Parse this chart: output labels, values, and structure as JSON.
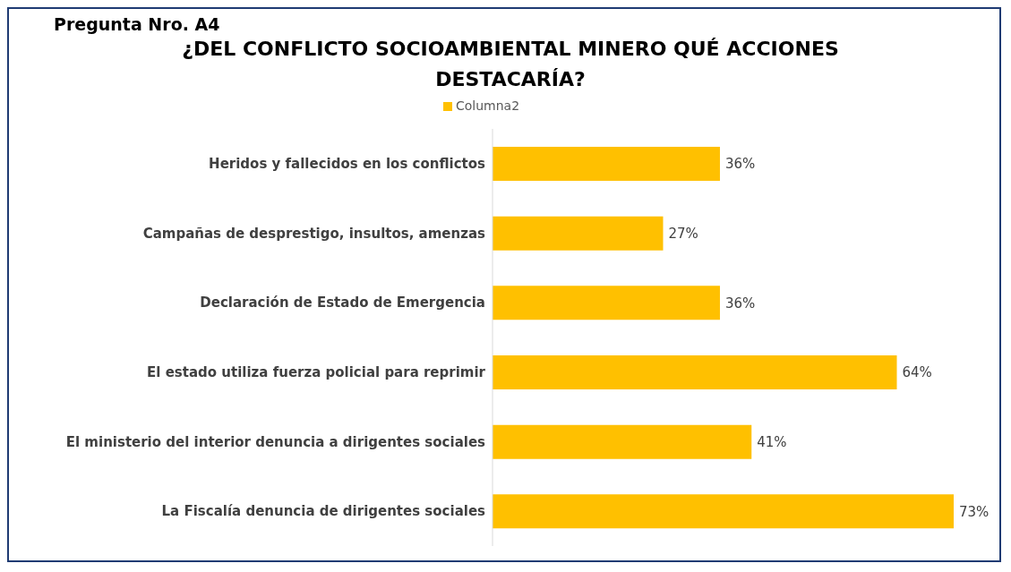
{
  "chart_data": {
    "type": "bar",
    "orientation": "horizontal",
    "subtitle": "Pregunta Nro. A4",
    "title": "¿DEL CONFLICTO SOCIOAMBIENTAL MINERO QUÉ ACCIONES DESTACARÍA?",
    "categories": [
      "Heridos y fallecidos en los conflictos",
      "Campañas de desprestigo, insultos, amenzas",
      "Declaración de Estado de Emergencia",
      "El estado utiliza fuerza policial para reprimir",
      "El ministerio del interior denuncia a dirigentes sociales",
      "La Fiscalía denuncia de dirigentes sociales"
    ],
    "series": [
      {
        "name": "Columna2",
        "color": "#ffc000",
        "values": [
          36,
          27,
          36,
          64,
          41,
          73
        ],
        "value_labels": [
          "36%",
          "27%",
          "36%",
          "64%",
          "41%",
          "73%"
        ]
      }
    ],
    "legend": "top"
  }
}
